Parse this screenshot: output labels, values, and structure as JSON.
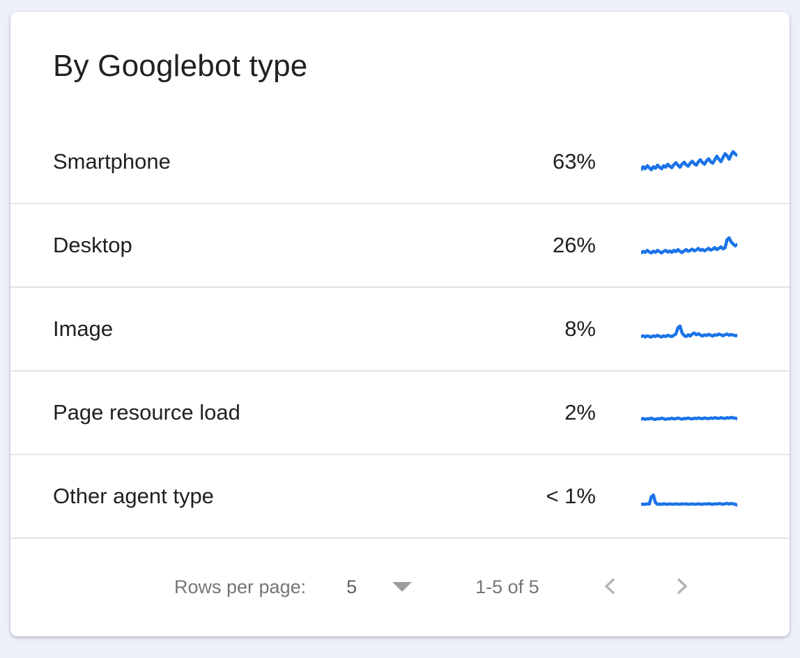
{
  "card": {
    "title": "By Googlebot type"
  },
  "colors": {
    "accent_blue": "#1a73e8",
    "text_primary": "#202124",
    "text_secondary": "#757575",
    "divider": "#e4e4e4",
    "chevron_gray": "#b3b3b3",
    "caret_gray": "#9e9e9e",
    "page_background": "#edf0f9",
    "card_background": "#ffffff"
  },
  "rows": [
    {
      "label": "Smartphone",
      "value": "63%",
      "sparkline": {
        "trend": "noisy rising",
        "values": [
          0.18,
          0.3,
          0.22,
          0.34,
          0.26,
          0.18,
          0.3,
          0.24,
          0.36,
          0.28,
          0.22,
          0.34,
          0.28,
          0.4,
          0.32,
          0.26,
          0.38,
          0.46,
          0.36,
          0.28,
          0.4,
          0.48,
          0.38,
          0.32,
          0.44,
          0.52,
          0.42,
          0.36,
          0.5,
          0.58,
          0.46,
          0.4,
          0.54,
          0.62,
          0.5,
          0.44,
          0.58,
          0.72,
          0.6,
          0.5,
          0.66,
          0.82,
          0.74,
          0.6,
          0.78,
          0.9,
          0.8,
          0.76
        ]
      }
    },
    {
      "label": "Desktop",
      "value": "26%",
      "sparkline": {
        "trend": "flat with spike near end",
        "values": [
          0.2,
          0.26,
          0.22,
          0.3,
          0.24,
          0.2,
          0.27,
          0.22,
          0.3,
          0.25,
          0.2,
          0.26,
          0.3,
          0.23,
          0.28,
          0.22,
          0.3,
          0.25,
          0.33,
          0.26,
          0.21,
          0.28,
          0.33,
          0.26,
          0.3,
          0.35,
          0.28,
          0.32,
          0.38,
          0.3,
          0.34,
          0.28,
          0.33,
          0.38,
          0.31,
          0.35,
          0.41,
          0.33,
          0.38,
          0.44,
          0.36,
          0.4,
          0.72,
          0.8,
          0.64,
          0.55,
          0.48,
          0.54
        ]
      }
    },
    {
      "label": "Image",
      "value": "8%",
      "sparkline": {
        "trend": "flat with mid spike",
        "values": [
          0.2,
          0.23,
          0.18,
          0.23,
          0.2,
          0.18,
          0.23,
          0.2,
          0.25,
          0.21,
          0.18,
          0.23,
          0.2,
          0.25,
          0.22,
          0.2,
          0.25,
          0.3,
          0.55,
          0.62,
          0.35,
          0.24,
          0.2,
          0.27,
          0.22,
          0.3,
          0.34,
          0.27,
          0.31,
          0.26,
          0.22,
          0.27,
          0.24,
          0.29,
          0.25,
          0.22,
          0.27,
          0.25,
          0.3,
          0.27,
          0.23,
          0.27,
          0.3,
          0.25,
          0.28,
          0.26,
          0.23,
          0.25
        ]
      }
    },
    {
      "label": "Page resource load",
      "value": "2%",
      "sparkline": {
        "trend": "flat",
        "values": [
          0.24,
          0.27,
          0.23,
          0.26,
          0.25,
          0.28,
          0.24,
          0.23,
          0.26,
          0.25,
          0.28,
          0.26,
          0.23,
          0.26,
          0.25,
          0.28,
          0.25,
          0.26,
          0.29,
          0.26,
          0.24,
          0.27,
          0.26,
          0.29,
          0.26,
          0.25,
          0.28,
          0.26,
          0.29,
          0.27,
          0.26,
          0.29,
          0.27,
          0.26,
          0.29,
          0.27,
          0.3,
          0.28,
          0.27,
          0.3,
          0.28,
          0.27,
          0.3,
          0.28,
          0.31,
          0.29,
          0.28,
          0.26
        ]
      }
    },
    {
      "label": "Other agent type",
      "value": "< 1%",
      "sparkline": {
        "trend": "flat with early bump",
        "values": [
          0.18,
          0.19,
          0.18,
          0.2,
          0.19,
          0.48,
          0.55,
          0.25,
          0.18,
          0.19,
          0.18,
          0.2,
          0.19,
          0.18,
          0.2,
          0.19,
          0.18,
          0.2,
          0.19,
          0.18,
          0.2,
          0.19,
          0.2,
          0.18,
          0.19,
          0.2,
          0.18,
          0.19,
          0.2,
          0.19,
          0.18,
          0.2,
          0.19,
          0.21,
          0.19,
          0.18,
          0.2,
          0.19,
          0.21,
          0.2,
          0.18,
          0.2,
          0.22,
          0.19,
          0.21,
          0.2,
          0.18,
          0.15
        ]
      }
    }
  ],
  "footer": {
    "rows_per_page_label": "Rows per page:",
    "rows_per_page_value": "5",
    "range_text": "1-5 of 5"
  }
}
